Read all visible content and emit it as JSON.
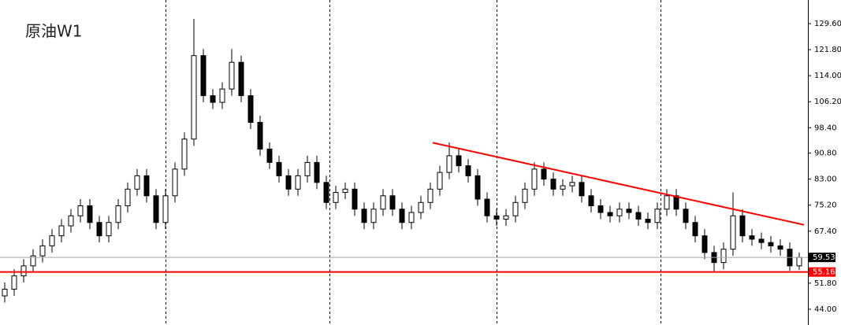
{
  "chart_data": {
    "type": "candlestick",
    "title": "原油W1",
    "ylim": [
      39.28,
      136.67
    ],
    "yticks": [
      {
        "value": 129.6,
        "label": "129.60"
      },
      {
        "value": 121.8,
        "label": "121.80"
      },
      {
        "value": 114,
        "label": "114.00"
      },
      {
        "value": 106.2,
        "label": "106.20"
      },
      {
        "value": 98.4,
        "label": "98.40"
      },
      {
        "value": 90.8,
        "label": "90.80"
      },
      {
        "value": 83,
        "label": "83.00"
      },
      {
        "value": 75.2,
        "label": "75.20"
      },
      {
        "value": 67.4,
        "label": "67.40"
      },
      {
        "value": 51.8,
        "label": "51.80"
      },
      {
        "value": 44,
        "label": "44.00"
      }
    ],
    "open": [
      48,
      50,
      54,
      57,
      60,
      63,
      66,
      69,
      72,
      75,
      70,
      66,
      70,
      75,
      80,
      84,
      78,
      70,
      78,
      86,
      95,
      120,
      108,
      106,
      110,
      118,
      108,
      100,
      92,
      88,
      84,
      80,
      84,
      88,
      82,
      76,
      79,
      80,
      74,
      70,
      74,
      78,
      74,
      70,
      73,
      76,
      80,
      85,
      90,
      87,
      84,
      77,
      72,
      71,
      72,
      76,
      80,
      86,
      83,
      80,
      81,
      82,
      78,
      75,
      73,
      72,
      74,
      73,
      71,
      70,
      74,
      78,
      74,
      70,
      66,
      61,
      58,
      62,
      72,
      66,
      65,
      64,
      63,
      62,
      57
    ],
    "high": [
      52,
      56,
      59,
      62,
      65,
      68,
      71,
      74,
      77,
      77,
      72,
      72,
      77,
      82,
      86,
      86,
      80,
      80,
      88,
      97,
      131,
      122,
      110,
      112,
      122,
      120,
      110,
      102,
      94,
      90,
      86,
      86,
      90,
      90,
      84,
      81,
      82,
      82,
      76,
      76,
      80,
      80,
      76,
      75,
      78,
      82,
      87,
      94,
      92,
      89,
      86,
      79,
      74,
      74,
      78,
      82,
      88,
      88,
      85,
      83,
      84,
      84,
      80,
      77,
      75,
      76,
      76,
      75,
      73,
      76,
      80,
      80,
      76,
      72,
      68,
      63,
      64,
      79,
      74,
      68,
      67,
      66,
      65,
      64,
      61
    ],
    "low": [
      46,
      48,
      52,
      55,
      58,
      61,
      64,
      67,
      70,
      68,
      64,
      64,
      68,
      73,
      78,
      76,
      68,
      68,
      76,
      84,
      93,
      106,
      104,
      104,
      108,
      106,
      98,
      90,
      86,
      82,
      78,
      78,
      82,
      80,
      74,
      74,
      77,
      72,
      68,
      68,
      72,
      72,
      68,
      68,
      71,
      74,
      78,
      83,
      85,
      82,
      75,
      70,
      69,
      69,
      70,
      74,
      78,
      81,
      78,
      78,
      79,
      76,
      73,
      71,
      70,
      70,
      71,
      69,
      68,
      68,
      72,
      72,
      68,
      64,
      59,
      55.2,
      56,
      60,
      64,
      63,
      62,
      61,
      60,
      55.5,
      55.8
    ],
    "close": [
      50,
      54,
      57,
      60,
      63,
      66,
      69,
      72,
      75,
      70,
      66,
      70,
      75,
      80,
      84,
      78,
      70,
      78,
      86,
      95,
      120,
      108,
      106,
      110,
      118,
      108,
      100,
      92,
      88,
      84,
      80,
      84,
      88,
      82,
      76,
      79,
      80,
      74,
      70,
      74,
      78,
      74,
      70,
      73,
      76,
      80,
      85,
      90,
      87,
      84,
      77,
      72,
      71,
      72,
      76,
      80,
      86,
      83,
      80,
      81,
      82,
      78,
      75,
      73,
      72,
      74,
      73,
      71,
      70,
      74,
      78,
      74,
      70,
      66,
      61,
      58,
      62,
      72,
      66,
      65,
      64,
      63,
      62,
      57,
      59.53
    ],
    "bull_color": "#ffffff",
    "bear_color": "#000000",
    "current_price": {
      "value": 59.53,
      "label": "59.53",
      "color": "#a0a8b0"
    },
    "support": {
      "value": 55.16,
      "label": "55.16",
      "color": "#ff0000"
    },
    "trendline": {
      "x": [
        45.25,
        84.5
      ],
      "y": [
        93.9,
        69.3
      ],
      "color": "#ff0000"
    }
  }
}
